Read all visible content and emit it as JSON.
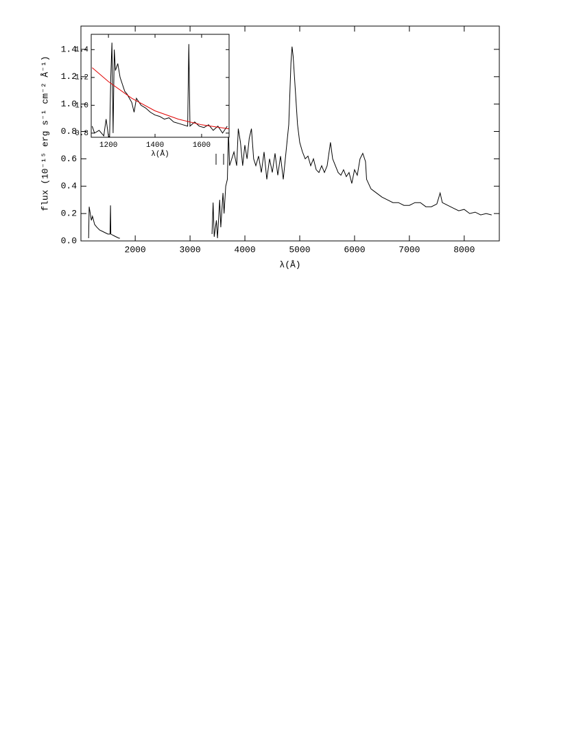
{
  "chart_data": [
    {
      "type": "line",
      "x_label": "λ(Å)",
      "y_label": "flux (10⁻¹⁵ erg s⁻¹ cm⁻² Å⁻¹)",
      "xlim": [
        1010,
        8640
      ],
      "ylim": [
        0,
        1.57
      ],
      "xticks": [
        2000,
        3000,
        4000,
        5000,
        6000,
        7000,
        8000
      ],
      "yticks": [
        {
          "value": 0,
          "label": "0.0"
        },
        0.2,
        0.4,
        0.6,
        0.8,
        {
          "value": 1,
          "label": "1.0"
        },
        1.2,
        1.4
      ],
      "series": [
        {
          "color": "#000000",
          "x": [
            1150,
            1160,
            1200,
            1220,
            1260,
            1300,
            1350,
            1400,
            1450,
            1500,
            1540,
            1549,
            1555,
            1600,
            1650,
            1700,
            1720,
            2600,
            3400,
            3420,
            3440,
            3480,
            3500,
            3540,
            3560,
            3600,
            3620,
            3650,
            3680,
            3700,
            3720,
            3760,
            3800,
            3850,
            3880,
            3920,
            3960,
            4000,
            4040,
            4080,
            4120,
            4160,
            4200,
            4250,
            4300,
            4350,
            4400,
            4450,
            4500,
            4550,
            4600,
            4650,
            4700,
            4750,
            4800,
            4840,
            4860,
            4880,
            4920,
            4960,
            5000,
            5050,
            5100,
            5150,
            5200,
            5250,
            5300,
            5350,
            5400,
            5450,
            5500,
            5560,
            5600,
            5650,
            5700,
            5750,
            5800,
            5850,
            5900,
            5950,
            6000,
            6050,
            6100,
            6150,
            6200,
            6220,
            6300,
            6400,
            6500,
            6600,
            6700,
            6800,
            6900,
            7000,
            7100,
            7200,
            7300,
            7400,
            7500,
            7560,
            7600,
            7700,
            7800,
            7900,
            8000,
            8100,
            8200,
            8300,
            8400,
            8500
          ],
          "values": [
            0.02,
            0.25,
            0.15,
            0.18,
            0.12,
            0.1,
            0.08,
            0.07,
            0.06,
            0.05,
            0.05,
            0.26,
            0.05,
            0.04,
            0.03,
            0.02,
            0.02,
            null,
            0.05,
            0.28,
            0.03,
            0.15,
            0.02,
            0.3,
            0.1,
            0.35,
            0.2,
            0.4,
            0.45,
            0.8,
            0.55,
            0.6,
            0.65,
            0.55,
            0.82,
            0.72,
            0.55,
            0.7,
            0.6,
            0.75,
            0.82,
            0.6,
            0.55,
            0.62,
            0.5,
            0.65,
            0.45,
            0.6,
            0.5,
            0.64,
            0.48,
            0.62,
            0.45,
            0.65,
            0.85,
            1.3,
            1.42,
            1.35,
            1.1,
            0.85,
            0.72,
            0.65,
            0.6,
            0.62,
            0.55,
            0.6,
            0.52,
            0.5,
            0.55,
            0.5,
            0.55,
            0.72,
            0.6,
            0.55,
            0.5,
            0.48,
            0.52,
            0.47,
            0.5,
            0.42,
            0.52,
            0.48,
            0.6,
            0.64,
            0.58,
            0.45,
            0.38,
            0.35,
            0.32,
            0.3,
            0.28,
            0.28,
            0.26,
            0.26,
            0.28,
            0.28,
            0.25,
            0.25,
            0.27,
            0.35,
            0.28,
            0.26,
            0.24,
            0.22,
            0.23,
            0.2,
            0.21,
            0.19,
            0.2,
            0.19
          ]
        }
      ]
    },
    {
      "type": "line",
      "x_label": "λ(Å)",
      "xlim": [
        1126,
        1718
      ],
      "ylim": [
        0.77,
        1.51
      ],
      "xticks": [
        1200,
        1400,
        1600
      ],
      "yticks": [
        0.8,
        {
          "value": 1,
          "label": "1.0"
        },
        1.2,
        1.4
      ],
      "series": [
        {
          "color": "#000000",
          "x": [
            1130,
            1140,
            1160,
            1180,
            1190,
            1200,
            1205,
            1210,
            1215,
            1220,
            1225,
            1230,
            1240,
            1250,
            1260,
            1270,
            1280,
            1290,
            1300,
            1310,
            1320,
            1340,
            1360,
            1380,
            1400,
            1420,
            1440,
            1460,
            1480,
            1500,
            1520,
            1540,
            1545,
            1550,
            1570,
            1590,
            1610,
            1630,
            1650,
            1670,
            1690,
            1710
          ],
          "values": [
            0.85,
            0.8,
            0.82,
            0.78,
            0.9,
            0.78,
            0.77,
            1.2,
            1.45,
            0.8,
            1.4,
            1.25,
            1.3,
            1.2,
            1.15,
            1.1,
            1.08,
            1.05,
            1.02,
            0.95,
            1.05,
            1.0,
            0.98,
            0.95,
            0.93,
            0.92,
            0.9,
            0.91,
            0.88,
            0.87,
            0.86,
            0.85,
            1.44,
            0.85,
            0.88,
            0.85,
            0.84,
            0.86,
            0.82,
            0.85,
            0.8,
            0.85
          ]
        },
        {
          "color": "#e00000",
          "x": [
            1130,
            1200,
            1300,
            1400,
            1500,
            1600,
            1718
          ],
          "values": [
            1.27,
            1.17,
            1.05,
            0.96,
            0.9,
            0.86,
            0.83
          ]
        }
      ]
    }
  ]
}
